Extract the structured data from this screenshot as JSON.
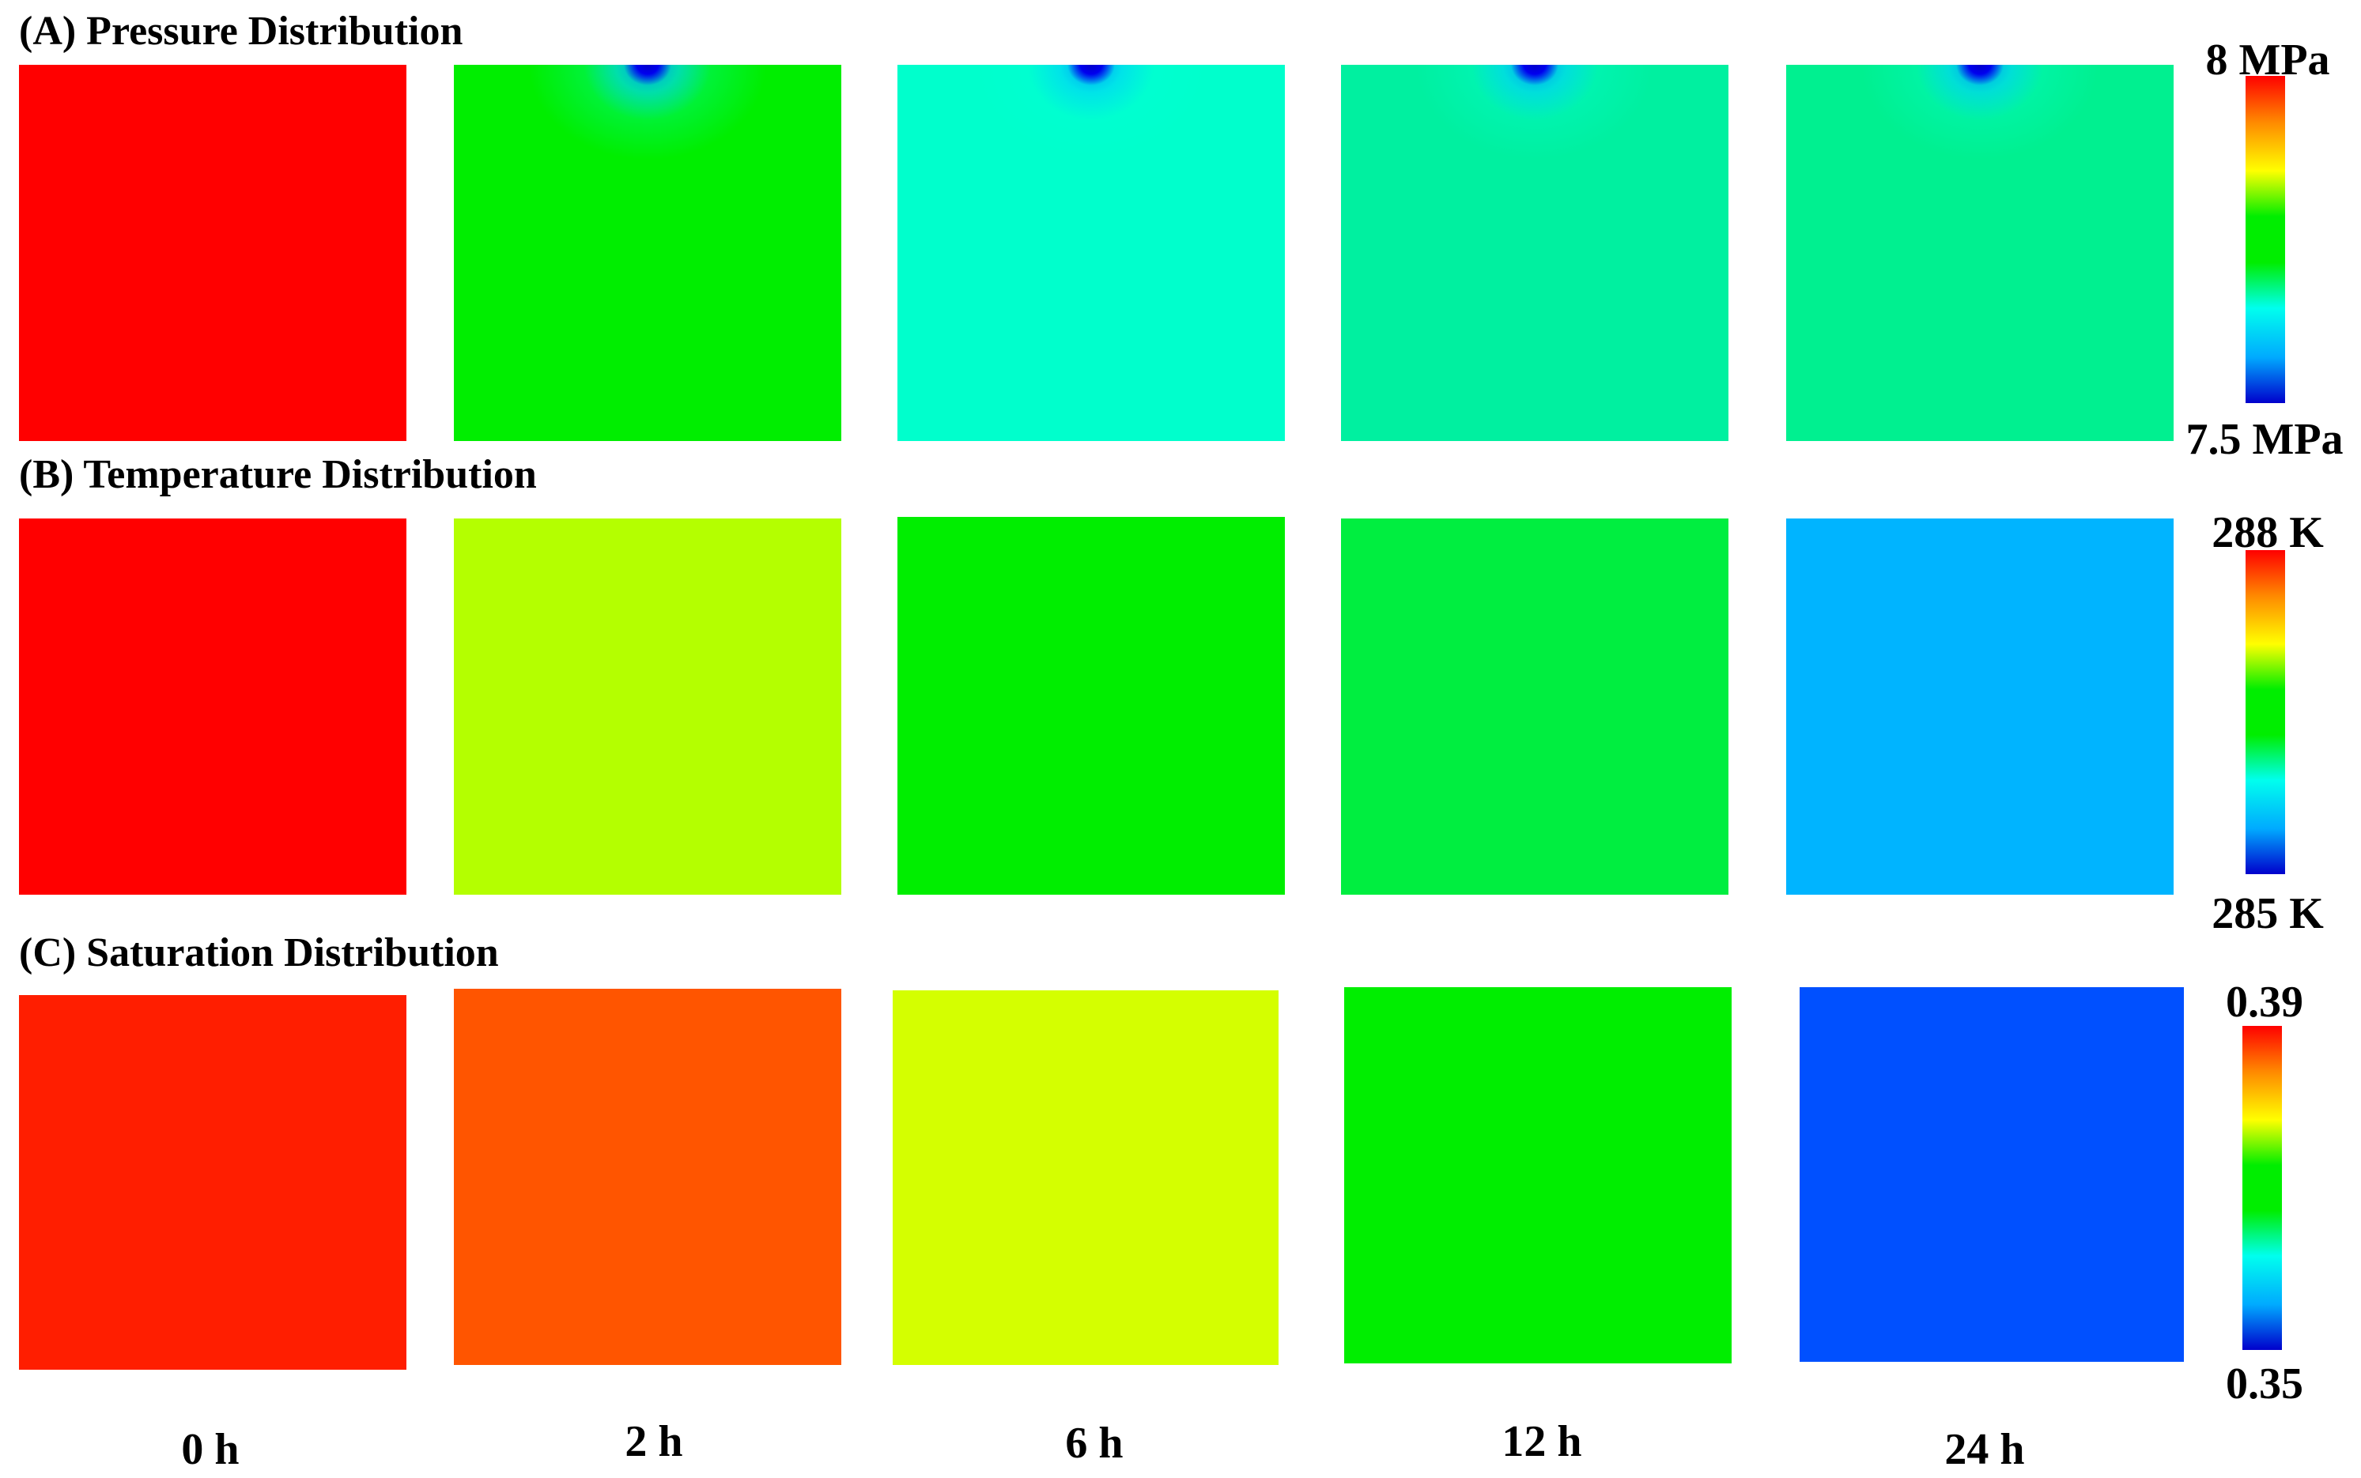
{
  "rows": [
    {
      "title": "(A) Pressure Distribution",
      "colorbar": {
        "max_label": "8 MPa",
        "min_label": "7.5 MPa"
      },
      "panels": [
        {
          "color": "#ff0000",
          "depression": 0
        },
        {
          "color": "#00ee00",
          "depression": 1
        },
        {
          "color": "#00ffcc",
          "depression": 1
        },
        {
          "color": "#00f0a0",
          "depression": 1
        },
        {
          "color": "#00f090",
          "depression": 1
        }
      ]
    },
    {
      "title": "(B) Temperature Distribution",
      "colorbar": {
        "max_label": "288 K",
        "min_label": "285 K"
      },
      "panels": [
        {
          "color": "#ff0000"
        },
        {
          "color": "#b4ff00"
        },
        {
          "color": "#00ee00"
        },
        {
          "color": "#00ee40"
        },
        {
          "color": "#00b4ff"
        }
      ]
    },
    {
      "title": "(C) Saturation Distribution",
      "colorbar": {
        "max_label": "0.39",
        "min_label": "0.35"
      },
      "panels": [
        {
          "color": "#ff1e00"
        },
        {
          "color": "#ff5500"
        },
        {
          "color": "#d4ff00"
        },
        {
          "color": "#00ee00"
        },
        {
          "color": "#0050ff"
        }
      ]
    }
  ],
  "time_labels": [
    "0 h",
    "2 h",
    "6 h",
    "12 h",
    "24 h"
  ],
  "colormap": [
    "#0000cc",
    "#00aaff",
    "#00ffee",
    "#00ee00",
    "#00ee00",
    "#ffff00",
    "#ff8800",
    "#ff0000"
  ]
}
